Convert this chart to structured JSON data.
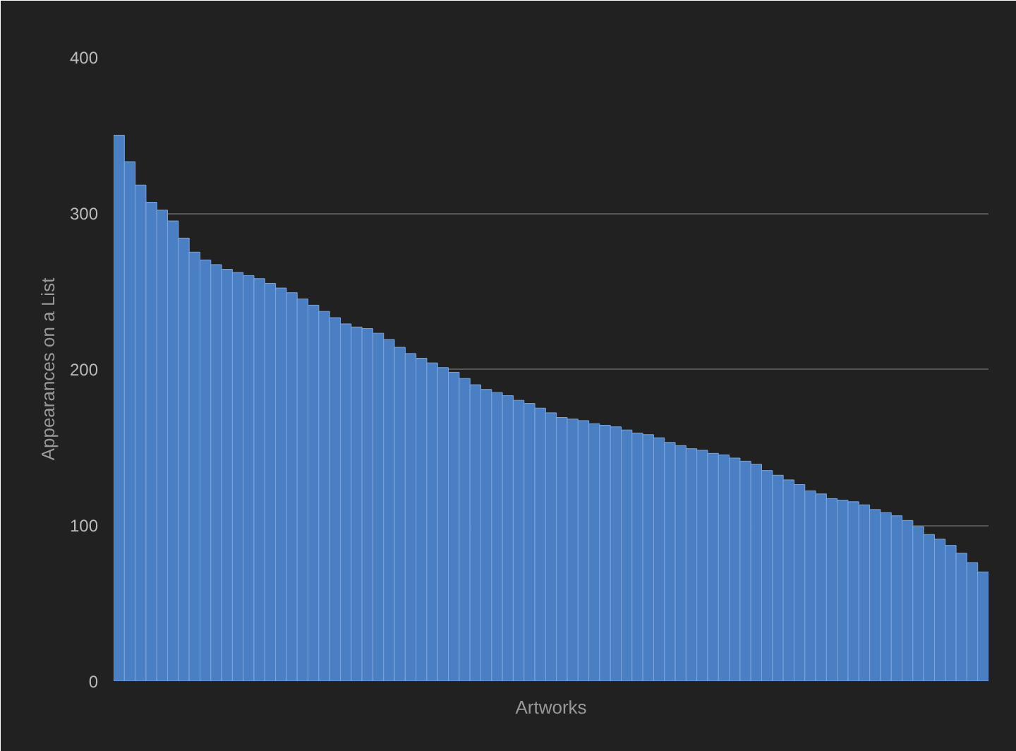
{
  "chart_data": {
    "type": "bar",
    "xlabel": "Artworks",
    "ylabel": "Appearances on a List",
    "categories": [
      null,
      null,
      null,
      null,
      null,
      null,
      null,
      null,
      null,
      null,
      null,
      null,
      null,
      null,
      null,
      null,
      null,
      null,
      null,
      null,
      null,
      null,
      null,
      null,
      null,
      null,
      null,
      null,
      null,
      null,
      null,
      null,
      null,
      null,
      null,
      null,
      null,
      null,
      null,
      null,
      null,
      null,
      null,
      null,
      null,
      null,
      null,
      null,
      null,
      null,
      null,
      null,
      null,
      null,
      null,
      null,
      null,
      null,
      null,
      null,
      null,
      null,
      null,
      null,
      null,
      null,
      null,
      null,
      null,
      null,
      null,
      null,
      null,
      null,
      null,
      null,
      null,
      null,
      null,
      null,
      null
    ],
    "values": [
      350,
      333,
      318,
      307,
      302,
      295,
      284,
      275,
      270,
      267,
      264,
      262,
      260,
      258,
      255,
      252,
      249,
      245,
      241,
      237,
      233,
      229,
      227,
      226,
      223,
      219,
      214,
      210,
      207,
      204,
      201,
      198,
      194,
      190,
      187,
      185,
      183,
      180,
      178,
      175,
      172,
      169,
      168,
      167,
      165,
      164,
      163,
      161,
      159,
      158,
      156,
      153,
      151,
      149,
      148,
      146,
      145,
      143,
      141,
      139,
      135,
      132,
      129,
      126,
      122,
      120,
      117,
      116,
      115,
      113,
      110,
      108,
      106,
      103,
      99,
      94,
      91,
      87,
      82,
      76,
      70
    ],
    "color": "#4b7fc3",
    "ylim": [
      0,
      400
    ],
    "yticks": [
      0,
      100,
      200,
      300,
      400
    ],
    "grid": "y"
  }
}
